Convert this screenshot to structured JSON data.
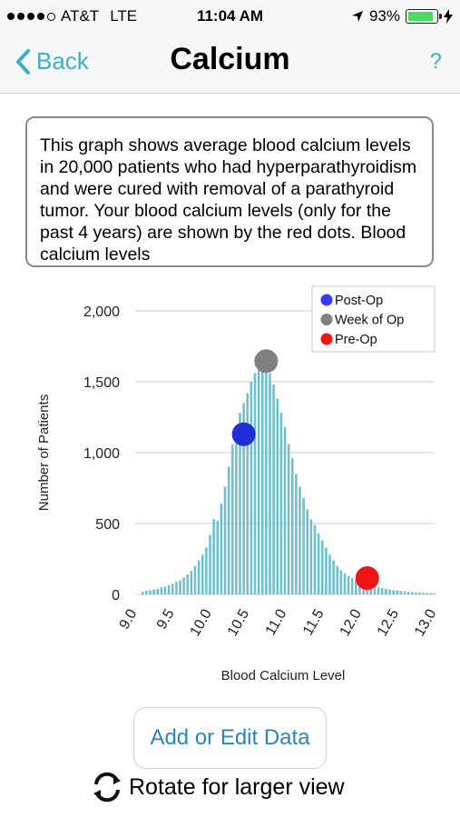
{
  "status_bar": {
    "carrier": "AT&T",
    "network": "LTE",
    "time": "11:04 AM",
    "battery_percent": "93%",
    "battery_level": 0.93
  },
  "nav": {
    "back_label": "Back",
    "title": "Calcium",
    "help_label": "?"
  },
  "description": "This graph shows average blood calcium levels in 20,000 patients who had hyperparathyroidism and were cured with removal of a parathyroid tumor. Your blood calcium levels (only for the past 4 years) are shown by the red dots. Blood calcium levels",
  "chart_data": {
    "type": "bar",
    "xlabel": "Blood Calcium Level",
    "ylabel": "Number of Patients",
    "xlim": [
      9.0,
      13.0
    ],
    "ylim": [
      0,
      2000
    ],
    "x_ticks": [
      "9.0",
      "9.5",
      "10.0",
      "10.5",
      "11.0",
      "11.5",
      "12.0",
      "12.5",
      "13.0"
    ],
    "y_ticks": [
      "0",
      "500",
      "1,000",
      "1,500",
      "2,000"
    ],
    "grid": true,
    "bar_color": "#6fc0cf",
    "bin_width": 0.05,
    "x": [
      9.1,
      9.15,
      9.2,
      9.25,
      9.3,
      9.35,
      9.4,
      9.45,
      9.5,
      9.55,
      9.6,
      9.65,
      9.7,
      9.75,
      9.8,
      9.85,
      9.9,
      9.95,
      10.0,
      10.05,
      10.1,
      10.15,
      10.2,
      10.25,
      10.3,
      10.35,
      10.4,
      10.45,
      10.5,
      10.55,
      10.6,
      10.65,
      10.7,
      10.75,
      10.8,
      10.85,
      10.9,
      10.95,
      11.0,
      11.05,
      11.1,
      11.15,
      11.2,
      11.25,
      11.3,
      11.35,
      11.4,
      11.45,
      11.5,
      11.55,
      11.6,
      11.65,
      11.7,
      11.75,
      11.8,
      11.85,
      11.9,
      11.95,
      12.0,
      12.05,
      12.1,
      12.15,
      12.2,
      12.25,
      12.3,
      12.35,
      12.4,
      12.45,
      12.5,
      12.55,
      12.6,
      12.65,
      12.7,
      12.75,
      12.8,
      12.85,
      12.9,
      12.95,
      13.0
    ],
    "values": [
      20,
      25,
      30,
      35,
      40,
      50,
      55,
      65,
      75,
      90,
      100,
      120,
      140,
      165,
      200,
      240,
      280,
      330,
      420,
      530,
      520,
      640,
      760,
      900,
      1060,
      1180,
      1280,
      1350,
      1420,
      1500,
      1560,
      1600,
      1620,
      1610,
      1560,
      1480,
      1380,
      1280,
      1180,
      1060,
      960,
      850,
      760,
      680,
      600,
      530,
      490,
      430,
      380,
      330,
      280,
      240,
      200,
      170,
      150,
      130,
      115,
      100,
      90,
      80,
      70,
      60,
      55,
      50,
      45,
      40,
      35,
      30,
      28,
      25,
      22,
      20,
      18,
      16,
      14,
      12,
      10,
      10,
      8
    ],
    "legend": {
      "position": "top-right",
      "entries": [
        {
          "name": "Post-Op",
          "color": "#3a3af5"
        },
        {
          "name": "Week of Op",
          "color": "#808080"
        },
        {
          "name": "Pre-Op",
          "color": "#f01515"
        }
      ]
    },
    "points": [
      {
        "series": "Post-Op",
        "x": 10.45,
        "y": 1130,
        "color": "#1d2fd6"
      },
      {
        "series": "Week of Op",
        "x": 10.75,
        "y": 1645,
        "color": "#808080"
      },
      {
        "series": "Pre-Op",
        "x": 12.1,
        "y": 115,
        "color": "#f01515"
      }
    ]
  },
  "add_button_label": "Add or Edit Data",
  "rotate_hint": "Rotate for larger view",
  "colors": {
    "accent": "#3bb2c4",
    "button_text": "#2e86b8"
  }
}
